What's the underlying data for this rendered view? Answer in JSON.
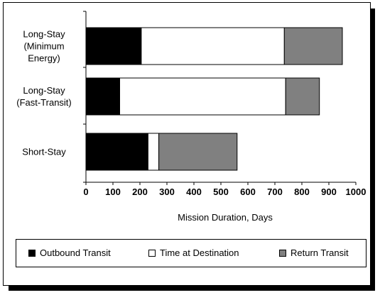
{
  "chart_data": {
    "type": "bar",
    "orientation": "horizontal",
    "stacked": true,
    "categories": [
      [
        "Long-Stay",
        "(Minimum",
        "Energy)"
      ],
      [
        "Long-Stay",
        "(Fast-Transit)"
      ],
      [
        "Short-Stay"
      ]
    ],
    "series": [
      {
        "name": "Outbound Transit",
        "color": "#000000",
        "values": [
          205,
          125,
          230
        ]
      },
      {
        "name": "Time at Destination",
        "color": "#ffffff",
        "values": [
          530,
          615,
          40
        ]
      },
      {
        "name": "Return Transit",
        "color": "#808080",
        "values": [
          215,
          125,
          290
        ]
      }
    ],
    "xlabel": "Mission Duration, Days",
    "xlim": [
      0,
      1000
    ],
    "xticks": [
      0,
      100,
      200,
      300,
      400,
      500,
      600,
      700,
      800,
      900,
      1000
    ],
    "grid": false,
    "legend_position": "bottom"
  }
}
